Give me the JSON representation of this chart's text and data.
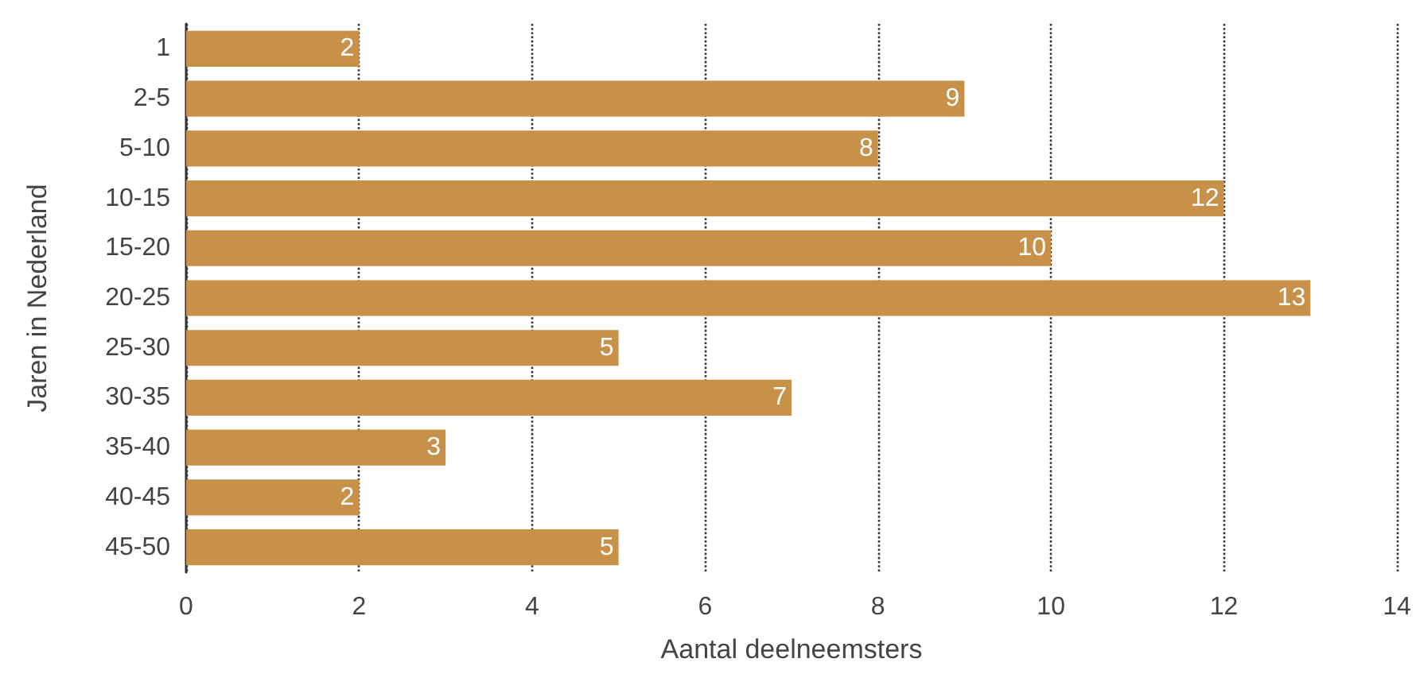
{
  "chart_data": {
    "type": "bar",
    "orientation": "horizontal",
    "xlabel": "Aantal deelneemsters",
    "ylabel": "Jaren in Nederland",
    "categories": [
      "1",
      "2-5",
      "5-10",
      "10-15",
      "15-20",
      "20-25",
      "25-30",
      "30-35",
      "35-40",
      "40-45",
      "45-50"
    ],
    "values": [
      2,
      9,
      8,
      12,
      10,
      13,
      5,
      7,
      3,
      2,
      5
    ],
    "color": "#c8914a",
    "xlim": [
      0,
      14
    ],
    "xticks": [
      0,
      2,
      4,
      6,
      8,
      10,
      12,
      14
    ],
    "grid": "x",
    "data_labels": true
  }
}
